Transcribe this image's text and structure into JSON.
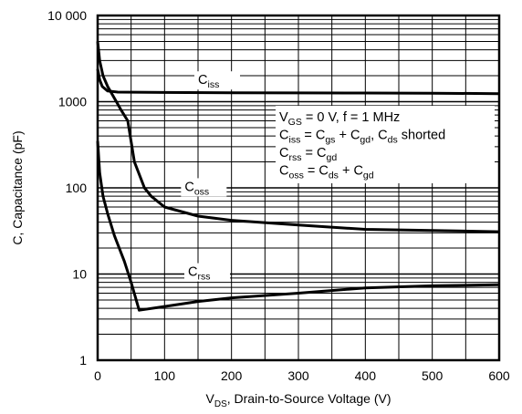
{
  "chart_data": {
    "type": "line",
    "xlabel": {
      "main": "V",
      "sub": "DS",
      "rest": ", Drain-to-Source Voltage (V)"
    },
    "ylabel": "C, Capacitance (pF)",
    "xlim": [
      0,
      600
    ],
    "ylim": [
      1,
      10000
    ],
    "yscale": "log",
    "grid": true,
    "x_ticks": [
      "0",
      "100",
      "200",
      "300",
      "400",
      "500",
      "600"
    ],
    "y_ticks": [
      "1",
      "10",
      "100",
      "1000",
      "10 000"
    ],
    "annotation": [
      [
        {
          "t": "V"
        },
        {
          "t": "GS",
          "s": "sub"
        },
        {
          "t": " = 0 V, f = 1 MHz"
        }
      ],
      [
        {
          "t": "C"
        },
        {
          "t": "iss",
          "s": "sub"
        },
        {
          "t": " = C"
        },
        {
          "t": "gs",
          "s": "sub"
        },
        {
          "t": " + C"
        },
        {
          "t": "gd",
          "s": "sub"
        },
        {
          "t": ", C"
        },
        {
          "t": "ds",
          "s": "sub"
        },
        {
          "t": " shorted"
        }
      ],
      [
        {
          "t": "C"
        },
        {
          "t": "rss",
          "s": "sub"
        },
        {
          "t": " = C"
        },
        {
          "t": "gd",
          "s": "sub"
        }
      ],
      [
        {
          "t": "C"
        },
        {
          "t": "oss",
          "s": "sub"
        },
        {
          "t": " = C"
        },
        {
          "t": "ds",
          "s": "sub"
        },
        {
          "t": " + C"
        },
        {
          "t": "gd",
          "s": "sub"
        }
      ]
    ],
    "series": [
      {
        "name": "Ciss",
        "label_main": "C",
        "label_sub": "iss",
        "label_at": [
          150,
          1600
        ],
        "points": [
          [
            0,
            2400
          ],
          [
            3,
            1800
          ],
          [
            7,
            1500
          ],
          [
            15,
            1330
          ],
          [
            30,
            1290
          ],
          [
            100,
            1280
          ],
          [
            200,
            1270
          ],
          [
            300,
            1265
          ],
          [
            400,
            1260
          ],
          [
            500,
            1255
          ],
          [
            600,
            1240
          ]
        ]
      },
      {
        "name": "Coss",
        "label_main": "C",
        "label_sub": "oss",
        "label_at": [
          130,
          92
        ],
        "points": [
          [
            0,
            5000
          ],
          [
            3,
            3000
          ],
          [
            8,
            2000
          ],
          [
            15,
            1500
          ],
          [
            25,
            1100
          ],
          [
            35,
            800
          ],
          [
            45,
            600
          ],
          [
            55,
            200
          ],
          [
            70,
            100
          ],
          [
            80,
            80
          ],
          [
            100,
            60
          ],
          [
            150,
            47
          ],
          [
            200,
            42
          ],
          [
            300,
            37
          ],
          [
            400,
            33
          ],
          [
            500,
            32
          ],
          [
            600,
            31
          ]
        ]
      },
      {
        "name": "Crss",
        "label_main": "C",
        "label_sub": "rss",
        "label_at": [
          135,
          9.5
        ],
        "points": [
          [
            0,
            350
          ],
          [
            3,
            150
          ],
          [
            8,
            80
          ],
          [
            15,
            50
          ],
          [
            25,
            28
          ],
          [
            40,
            14
          ],
          [
            50,
            8
          ],
          [
            62,
            3.8
          ],
          [
            100,
            4.2
          ],
          [
            150,
            4.8
          ],
          [
            200,
            5.3
          ],
          [
            300,
            6.0
          ],
          [
            400,
            6.9
          ],
          [
            500,
            7.3
          ],
          [
            600,
            7.5
          ]
        ]
      }
    ]
  }
}
